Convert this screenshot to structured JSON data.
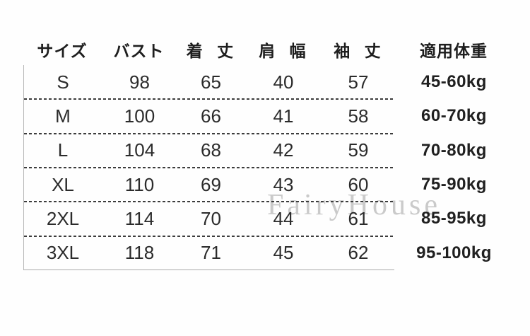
{
  "watermark": "FairyHouse",
  "chart_data": {
    "type": "table",
    "columns": [
      "サイズ",
      "バスト",
      "着 丈",
      "肩 幅",
      "袖 丈",
      "適用体重"
    ],
    "rows": [
      {
        "size": "S",
        "bust": 98,
        "length": 65,
        "shoulder": 40,
        "sleeve": 57,
        "weight": "45-60kg"
      },
      {
        "size": "M",
        "bust": 100,
        "length": 66,
        "shoulder": 41,
        "sleeve": 58,
        "weight": "60-70kg"
      },
      {
        "size": "L",
        "bust": 104,
        "length": 68,
        "shoulder": 42,
        "sleeve": 59,
        "weight": "70-80kg"
      },
      {
        "size": "XL",
        "bust": 110,
        "length": 69,
        "shoulder": 43,
        "sleeve": 60,
        "weight": "75-90kg"
      },
      {
        "size": "2XL",
        "bust": 114,
        "length": 70,
        "shoulder": 44,
        "sleeve": 61,
        "weight": "85-95kg"
      },
      {
        "size": "3XL",
        "bust": 118,
        "length": 71,
        "shoulder": 45,
        "sleeve": 62,
        "weight": "95-100kg"
      }
    ],
    "title": "",
    "layout_hints": {
      "row_separator": "dashed",
      "left_border": true,
      "bottom_border": true,
      "weight_column_outside_borders": true
    }
  },
  "colors": {
    "text": "#2b2b2b",
    "header_text": "#1e1e1e",
    "dashed_line": "#3c3c3c",
    "solid_line": "#b8b8b8",
    "watermark": "#cacaca",
    "background": "#fefefe"
  }
}
